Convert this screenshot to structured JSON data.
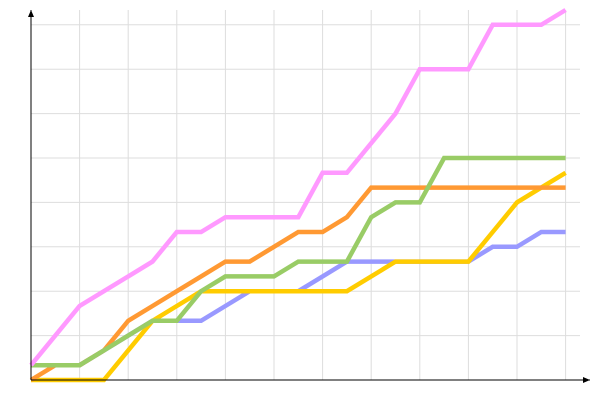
{
  "chart_data": {
    "type": "line",
    "title": "",
    "xlabel": "",
    "ylabel": "",
    "xlim": [
      0,
      12
    ],
    "ylim": [
      0,
      25
    ],
    "x_grid_step": 1,
    "y_grid_step": 3,
    "grid": true,
    "legend": "none",
    "x": [
      0,
      0.5,
      1,
      1.5,
      2,
      2.5,
      3,
      3.5,
      4,
      4.5,
      5,
      5.5,
      6,
      6.5,
      7,
      7.5,
      8,
      8.5,
      9,
      9.5,
      10,
      10.5,
      11
    ],
    "series": [
      {
        "color": "#9999ff",
        "values": [
          1,
          1,
          1,
          2,
          3,
          4,
          4,
          4,
          5,
          6,
          6,
          6,
          7,
          8,
          8,
          8,
          8,
          8,
          8,
          9,
          9,
          10,
          10
        ]
      },
      {
        "color": "#ffcc00",
        "values": [
          0,
          0,
          0,
          0,
          2,
          4,
          5,
          6,
          6,
          6,
          6,
          6,
          6,
          6,
          7,
          8,
          8,
          8,
          8,
          10,
          12,
          13,
          14
        ]
      },
      {
        "color": "#ff9933",
        "values": [
          0,
          1,
          1,
          2,
          4,
          5,
          6,
          7,
          8,
          8,
          9,
          10,
          10,
          11,
          13,
          13,
          13,
          13,
          13,
          13,
          13,
          13,
          13
        ]
      },
      {
        "color": "#99cc66",
        "values": [
          1,
          1,
          1,
          2,
          3,
          4,
          4,
          6,
          7,
          7,
          7,
          8,
          8,
          8,
          11,
          12,
          12,
          15,
          15,
          15,
          15,
          15,
          15
        ]
      },
      {
        "color": "#ff99ff",
        "values": [
          1,
          3,
          5,
          6,
          7,
          8,
          10,
          10,
          11,
          11,
          11,
          11,
          14,
          14,
          16,
          18,
          21,
          21,
          21,
          24,
          24,
          24,
          25
        ]
      }
    ]
  }
}
